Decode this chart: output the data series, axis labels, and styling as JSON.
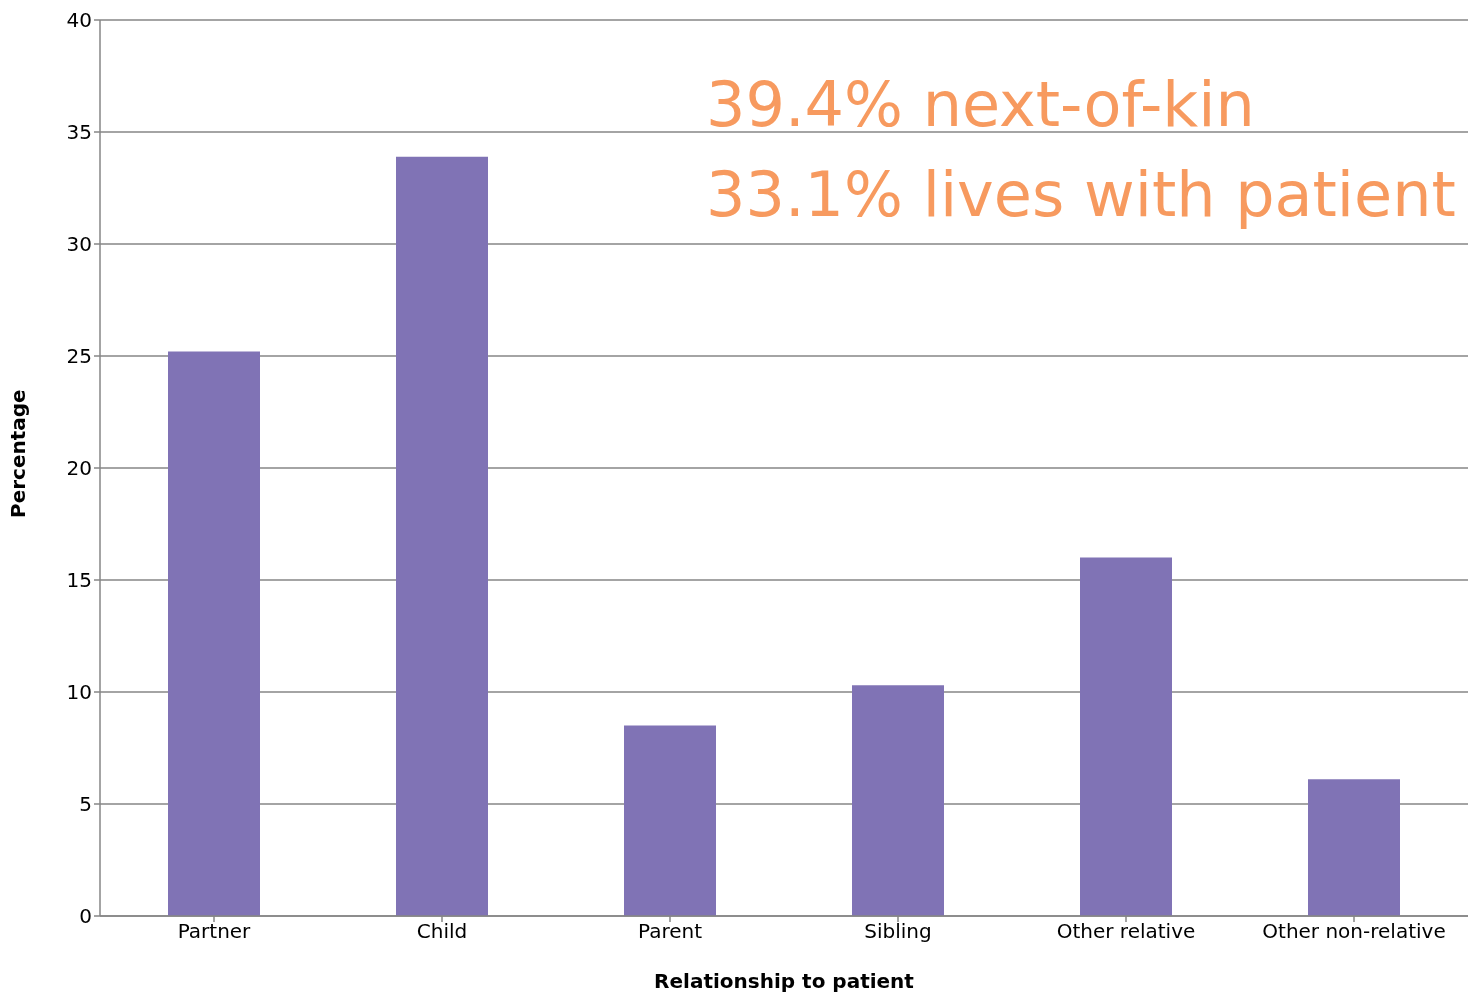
{
  "chart_data": {
    "type": "bar",
    "xlabel": "Relationship to patient",
    "ylabel": "Percentage",
    "categories": [
      "Partner",
      "Child",
      "Parent",
      "Sibling",
      "Other relative",
      "Other non-relative"
    ],
    "values": [
      25.2,
      33.9,
      8.5,
      10.3,
      16.0,
      6.1
    ],
    "color": "#8073b5",
    "ylim": [
      0,
      40
    ],
    "yticks": [
      0,
      5,
      10,
      15,
      20,
      25,
      30,
      35,
      40
    ],
    "grid": "y",
    "legend": false,
    "annotations": [
      "39.4% next-of-kin",
      "33.1% lives with patient"
    ]
  }
}
